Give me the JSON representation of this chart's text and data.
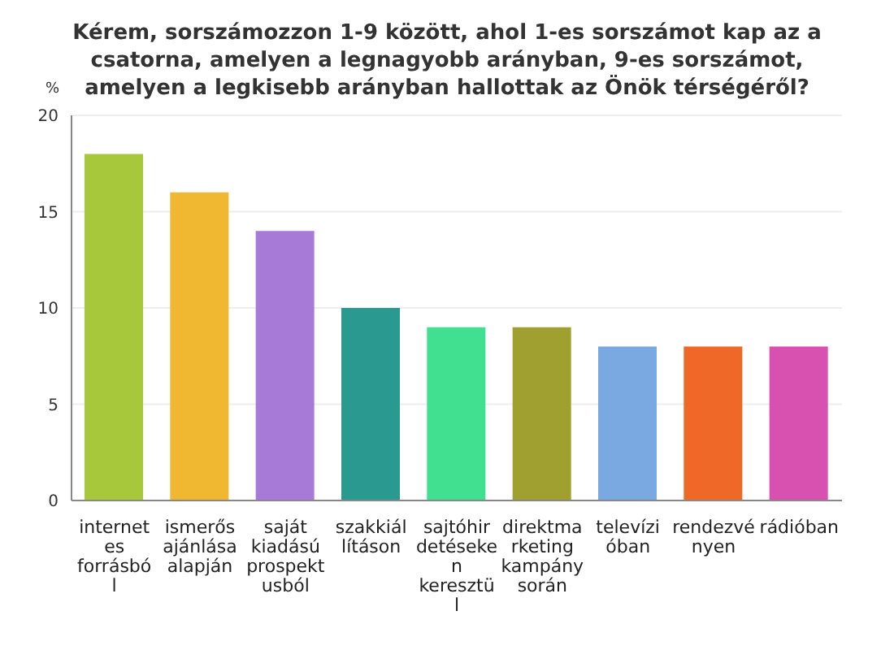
{
  "chart_data": {
    "type": "bar",
    "title": "Kérem, sorszámozzon 1-9 között, ahol 1-es sorszámot kap az a csatorna, amelyen a legnagyobb arányban, 9-es sorszámot, amelyen a legkisebb arányban hallottak az Önök térségéről?",
    "ylabel": "%",
    "categories": [
      "internetes forrásból",
      "ismerős ajánlása alapján",
      "saját kiadású prospektusból",
      "szakkiállításon",
      "sajtóhirdetéseken keresztül",
      "direktmarketing kampány során",
      "televízióban",
      "rendezvényen",
      "rádióban"
    ],
    "values": [
      18,
      16,
      14,
      10,
      9,
      9,
      8,
      8,
      8
    ],
    "colors": [
      "#a8c83c",
      "#f0b830",
      "#a87ad8",
      "#2a9a90",
      "#40e090",
      "#a0a030",
      "#7aa8e0",
      "#f06828",
      "#d850b0"
    ],
    "ylim": [
      0,
      20
    ],
    "yticks": [
      0,
      5,
      10,
      15,
      20
    ],
    "grid": "y"
  }
}
